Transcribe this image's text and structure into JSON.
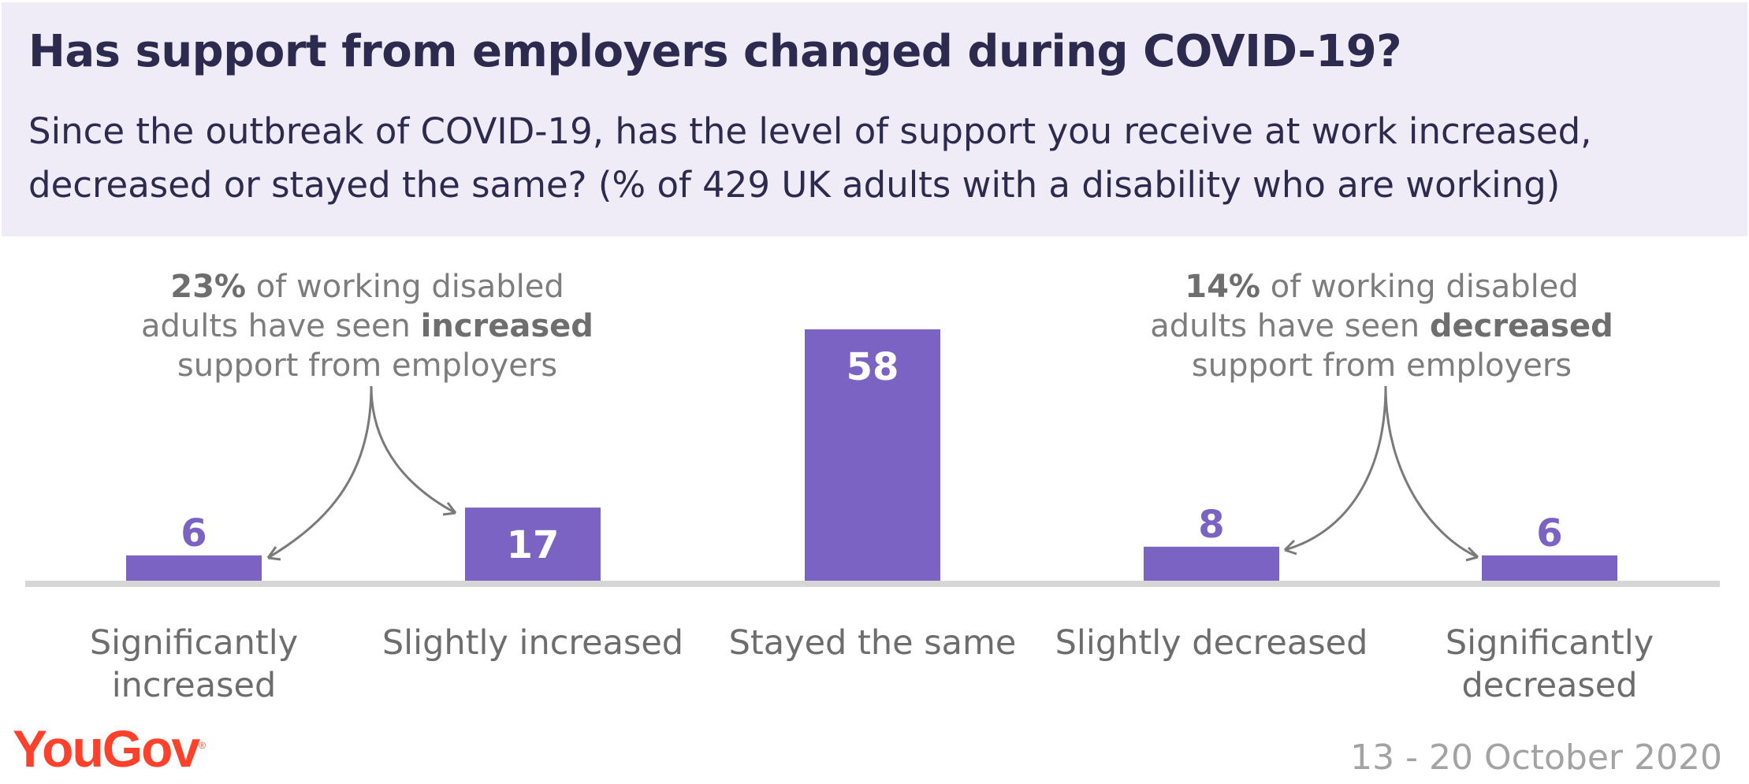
{
  "header": {
    "title": "Has support from employers changed during COVID-19?",
    "subtitle": "Since the outbreak of COVID-19, has the level of support you receive at work increased, decreased or stayed the same? (% of 429 UK adults with a disability who are working)"
  },
  "chart_data": {
    "type": "bar",
    "categories": [
      "Significantly increased",
      "Slightly increased",
      "Stayed the same",
      "Slightly decreased",
      "Significantly decreased"
    ],
    "values": [
      6,
      17,
      58,
      8,
      6
    ],
    "ylim": [
      0,
      58
    ],
    "grid": false,
    "bar_color": "#7b63c4",
    "label_color_outside": "#7b63c4",
    "label_color_inside": "#ffffff",
    "axis_color": "#d6d6d6"
  },
  "annotations": {
    "increased": {
      "pct": "23%",
      "text1": " of working disabled adults have seen ",
      "emph": "increased",
      "text2": " support from employers"
    },
    "decreased": {
      "pct": "14%",
      "text1": " of working disabled adults have seen ",
      "emph": "decreased",
      "text2": " support from employers"
    }
  },
  "footer": {
    "logo": "YouGov",
    "date": "13 - 20 October 2020"
  }
}
